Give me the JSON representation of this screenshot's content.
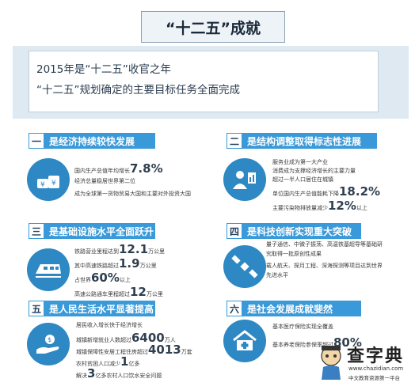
{
  "title": "“十二五”成就",
  "banner": {
    "line1": "2015年是“十二五”收官之年",
    "line2": "“十二五”规划确定的主要目标任务全面完成"
  },
  "sections": [
    {
      "num": "一",
      "heading": "是经济持续较快发展",
      "lines": [
        {
          "pre": "国内生产总值年均增长",
          "big": "7.8%",
          "post": ""
        },
        {
          "pre": "经济总量稳居世界第二位",
          "big": "",
          "post": ""
        },
        {
          "pre": "成为全球第一货物贸易大国和主要对外投资大国",
          "big": "",
          "post": ""
        }
      ]
    },
    {
      "num": "二",
      "heading": "是结构调整取得标志性进展",
      "lines": [
        {
          "pre": "服务业成为第一大产业",
          "big": "",
          "post": ""
        },
        {
          "pre": "消费成为支撑经济增长的主要力量",
          "big": "",
          "post": ""
        },
        {
          "pre": "超过一半人口居住在城镇",
          "big": "",
          "post": ""
        },
        {
          "pre": "单位国内生产总值能耗下降",
          "big": "18.2%",
          "post": ""
        },
        {
          "pre": "主要污染物排放量减少",
          "big": "12%",
          "post": "以上"
        }
      ]
    },
    {
      "num": "三",
      "heading": "是基础设施水平全面跃升",
      "lines": [
        {
          "pre": "铁路营业里程达到",
          "big": "12.1",
          "post": "万公里"
        },
        {
          "pre": "其中高速铁路超过",
          "big": "1.9",
          "post": "万公里"
        },
        {
          "pre": "占世界",
          "big": "60%",
          "post": "以上"
        },
        {
          "pre": "高速公路通车里程超过",
          "big": "12",
          "post": "万公里"
        }
      ]
    },
    {
      "num": "四",
      "heading": "是科技创新实现重大突破",
      "lines": [
        {
          "pre": "量子通信、中微子振荡、高温铁基超导等基础研",
          "big": "",
          "post": ""
        },
        {
          "pre": "究取得一批原创性成果",
          "big": "",
          "post": ""
        },
        {
          "pre": "载人航天、探月工程、深海探测等项目达到世界",
          "big": "",
          "post": ""
        },
        {
          "pre": "先进水平",
          "big": "",
          "post": ""
        }
      ]
    },
    {
      "num": "五",
      "heading": "是人民生活水平显著提高",
      "lines": [
        {
          "pre": "居民收入增长快于经济增长",
          "big": "",
          "post": ""
        },
        {
          "pre": "城镇新增就业人数超过",
          "big": "6400",
          "post": "万人"
        },
        {
          "pre": "城镇保障性安居工程住房超过",
          "big": "4013",
          "post": "万套"
        },
        {
          "pre": "农村贫困人口减少",
          "big": "1",
          "post": "亿多"
        },
        {
          "pre": "解决",
          "big": "3",
          "post": "亿多农村人口饮水安全问题"
        }
      ]
    },
    {
      "num": "六",
      "heading": "是社会发展成就斐然",
      "lines": [
        {
          "pre": "基本医疗保险实现全覆盖",
          "big": "",
          "post": ""
        },
        {
          "pre": "基本养老保险参保率超过",
          "big": "80%",
          "post": ""
        }
      ]
    }
  ],
  "logo": {
    "main": "查字典",
    "url": "www.chazidian.com",
    "sub": "中文教育资源第一平台"
  },
  "colors": {
    "accent": "#3a9ad9",
    "icon": "#2d88c4",
    "banner_bg": "#dfe9f1"
  }
}
